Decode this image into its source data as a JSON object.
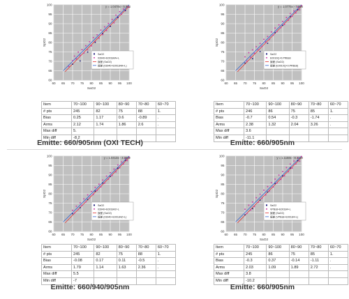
{
  "chart_data": [
    {
      "type": "scatter",
      "x_axis_label": "SaO2",
      "y_axis_label": "SpO2",
      "x_ticks": [
        "60",
        "65",
        "70",
        "75",
        "80",
        "85",
        "90",
        "95",
        "100"
      ],
      "y_ticks": [
        "60",
        "65",
        "70",
        "75",
        "80",
        "85",
        "90",
        "95",
        "100"
      ],
      "xlim": [
        60,
        100
      ],
      "ylim": [
        60,
        100
      ],
      "grid": true,
      "legend_placement": "right",
      "fit_equation": "y = 1.0478x - 5.904",
      "legend": [
        "SaO2",
        "03940+E00184A+L",
        "誤差 (SaO2)",
        "誤差 (03940+E00184A+L)"
      ],
      "series": [
        {
          "name": "SaO2",
          "values": [
            [
              70,
              68.5
            ],
            [
              74,
              70.2
            ],
            [
              78,
              74.9
            ],
            [
              82,
              80.1
            ],
            [
              86,
              84.8
            ],
            [
              90,
              88.6
            ],
            [
              94,
              93.4
            ],
            [
              98,
              97.1
            ]
          ]
        },
        {
          "name": "03940+E00184A+L",
          "values": [
            [
              68,
              67.3
            ],
            [
              70,
              70.4
            ],
            [
              71,
              72.8
            ],
            [
              72,
              71.3
            ],
            [
              73,
              74.9
            ],
            [
              74,
              73.1
            ],
            [
              75,
              76.2
            ],
            [
              76,
              74.4
            ],
            [
              77,
              78.3
            ],
            [
              78,
              76.1
            ],
            [
              79,
              80.4
            ],
            [
              80,
              78.2
            ],
            [
              81,
              82.6
            ],
            [
              82,
              80.4
            ],
            [
              83,
              84.1
            ],
            [
              84,
              82.3
            ],
            [
              85,
              86.6
            ],
            [
              86,
              84.2
            ],
            [
              87,
              88.3
            ],
            [
              88,
              86.4
            ],
            [
              89,
              90.1
            ],
            [
              90,
              88.6
            ],
            [
              91,
              92.3
            ],
            [
              92,
              90.4
            ],
            [
              93,
              94.6
            ],
            [
              94,
              93.2
            ],
            [
              95,
              96.4
            ],
            [
              96,
              95.1
            ],
            [
              97,
              97.8
            ],
            [
              98,
              96.9
            ],
            [
              99,
              99.2
            ],
            [
              100,
              98.7
            ]
          ]
        }
      ]
    },
    {
      "type": "scatter",
      "x_axis_label": "SaO2",
      "y_axis_label": "SpO2",
      "x_ticks": [
        "60",
        "65",
        "70",
        "75",
        "80",
        "85",
        "90",
        "95",
        "100"
      ],
      "y_ticks": [
        "60",
        "65",
        "70",
        "75",
        "80",
        "85",
        "90",
        "95",
        "100"
      ],
      "xlim": [
        60,
        100
      ],
      "ylim": [
        60,
        100
      ],
      "grid": true,
      "legend_placement": "right",
      "fit_equation": "y = 1.0775x - 7.998",
      "legend": [
        "SaO2",
        "E0010Q+0.PRBs8",
        "誤差 (SaO2)",
        "誤差 (E0010Q+0.PRBs8)"
      ],
      "series": [
        {
          "name": "SaO2",
          "values": [
            [
              70,
              69.1
            ],
            [
              74,
              71.4
            ],
            [
              78,
              75.2
            ],
            [
              82,
              79.6
            ],
            [
              86,
              85.2
            ],
            [
              90,
              89.1
            ],
            [
              94,
              93.8
            ],
            [
              98,
              97.4
            ]
          ]
        },
        {
          "name": "E0010Q+0.PRBs8",
          "values": [
            [
              70,
              72.4
            ],
            [
              71,
              70.1
            ],
            [
              72,
              74.6
            ],
            [
              73,
              72.2
            ],
            [
              74,
              76.1
            ],
            [
              75,
              74.3
            ],
            [
              76,
              77.8
            ],
            [
              77,
              76.1
            ],
            [
              78,
              79.6
            ],
            [
              79,
              77.9
            ],
            [
              80,
              81.7
            ],
            [
              81,
              80.3
            ],
            [
              82,
              83.2
            ],
            [
              83,
              81.6
            ],
            [
              84,
              85.6
            ],
            [
              85,
              83.9
            ],
            [
              86,
              87.7
            ],
            [
              87,
              85.8
            ],
            [
              88,
              89.4
            ],
            [
              89,
              87.9
            ],
            [
              90,
              91.2
            ],
            [
              91,
              89.6
            ],
            [
              92,
              93.3
            ],
            [
              93,
              91.8
            ],
            [
              94,
              95.4
            ],
            [
              95,
              93.9
            ],
            [
              96,
              96.8
            ],
            [
              97,
              95.7
            ],
            [
              98,
              98.9
            ],
            [
              99,
              97.4
            ],
            [
              100,
              99.6
            ]
          ]
        }
      ]
    },
    {
      "type": "scatter",
      "x_axis_label": "SaO2",
      "y_axis_label": "SpO2",
      "x_ticks": [
        "60",
        "65",
        "70",
        "75",
        "80",
        "85",
        "90",
        "95",
        "100"
      ],
      "y_ticks": [
        "60",
        "65",
        "70",
        "75",
        "80",
        "85",
        "90",
        "95",
        "100"
      ],
      "xlim": [
        60,
        100
      ],
      "ylim": [
        60,
        100
      ],
      "grid": true,
      "legend_placement": "right",
      "fit_equation": "y = 1.0413x - 4.0802",
      "legend": [
        "SaO2",
        "03940+E00184Z+L",
        "誤差 (SaO2)",
        "誤差 (03940+E00184Z+L)"
      ],
      "series": [
        {
          "name": "SaO2",
          "values": [
            [
              70,
              69.4
            ],
            [
              74,
              72.6
            ],
            [
              78,
              76.9
            ],
            [
              82,
              81.4
            ],
            [
              86,
              85.7
            ],
            [
              90,
              89.2
            ],
            [
              94,
              93.6
            ],
            [
              98,
              97.8
            ]
          ]
        },
        {
          "name": "03940+E00184Z+L",
          "values": [
            [
              70,
              71.2
            ],
            [
              71,
              69.8
            ],
            [
              72,
              73.4
            ],
            [
              73,
              71.6
            ],
            [
              74,
              75.2
            ],
            [
              75,
              73.8
            ],
            [
              76,
              77.3
            ],
            [
              77,
              75.6
            ],
            [
              78,
              79.4
            ],
            [
              79,
              77.7
            ],
            [
              80,
              81.2
            ],
            [
              81,
              79.6
            ],
            [
              82,
              83.4
            ],
            [
              83,
              81.8
            ],
            [
              84,
              85.1
            ],
            [
              85,
              83.7
            ],
            [
              86,
              87.3
            ],
            [
              87,
              85.6
            ],
            [
              88,
              89.4
            ],
            [
              89,
              87.8
            ],
            [
              90,
              91.2
            ],
            [
              91,
              89.7
            ],
            [
              92,
              93.1
            ],
            [
              93,
              91.6
            ],
            [
              94,
              95.3
            ],
            [
              95,
              93.8
            ],
            [
              96,
              96.9
            ],
            [
              97,
              95.8
            ],
            [
              98,
              98.8
            ],
            [
              99,
              97.6
            ],
            [
              100,
              99.4
            ]
          ]
        }
      ]
    },
    {
      "type": "scatter",
      "x_axis_label": "SaO2",
      "y_axis_label": "SpO2",
      "x_ticks": [
        "60",
        "65",
        "70",
        "75",
        "80",
        "85",
        "90",
        "95",
        "100"
      ],
      "y_ticks": [
        "60",
        "65",
        "70",
        "75",
        "80",
        "85",
        "90",
        "95",
        "100"
      ],
      "xlim": [
        60,
        100
      ],
      "ylim": [
        60,
        100
      ],
      "grid": true,
      "legend_placement": "right",
      "fit_equation": "y = 1.1158x - 8.1129",
      "legend": [
        "SaO2",
        "VPBs8+E00184+L",
        "誤差 (SaO2)",
        "誤差 (VPBs8+E00184+L)"
      ],
      "series": [
        {
          "name": "SaO2",
          "values": [
            [
              70,
              68.8
            ],
            [
              74,
              72.1
            ],
            [
              78,
              76.6
            ],
            [
              82,
              80.9
            ],
            [
              86,
              85.4
            ],
            [
              90,
              89.5
            ],
            [
              94,
              93.7
            ],
            [
              98,
              97.6
            ]
          ]
        },
        {
          "name": "VPBs8+E00184+L",
          "values": [
            [
              70,
              71.8
            ],
            [
              71,
              69.6
            ],
            [
              72,
              73.9
            ],
            [
              73,
              71.4
            ],
            [
              74,
              75.6
            ],
            [
              75,
              73.2
            ],
            [
              76,
              77.9
            ],
            [
              77,
              75.4
            ],
            [
              78,
              79.8
            ],
            [
              79,
              77.6
            ],
            [
              80,
              81.9
            ],
            [
              81,
              79.4
            ],
            [
              82,
              83.8
            ],
            [
              83,
              81.5
            ],
            [
              84,
              85.9
            ],
            [
              85,
              83.6
            ],
            [
              86,
              87.8
            ],
            [
              87,
              85.7
            ],
            [
              88,
              89.9
            ],
            [
              89,
              87.6
            ],
            [
              90,
              91.8
            ],
            [
              91,
              89.5
            ],
            [
              92,
              93.9
            ],
            [
              93,
              91.7
            ],
            [
              94,
              95.8
            ],
            [
              95,
              93.6
            ],
            [
              96,
              97.4
            ],
            [
              97,
              95.9
            ],
            [
              98,
              99.1
            ],
            [
              99,
              97.3
            ],
            [
              100,
              99.8
            ]
          ]
        }
      ]
    }
  ],
  "tables": [
    {
      "header": [
        "Item",
        "70~100",
        "90~100",
        "80~90",
        "70~80",
        "60~70"
      ],
      "rows": [
        [
          "# pts",
          "245",
          "82",
          "75",
          "88",
          "1."
        ],
        [
          "Bias",
          "0.25",
          "1.17",
          "0.6",
          "-0.89",
          "."
        ],
        [
          "Arms",
          "2.12",
          "1.74",
          "1.86",
          "2.6",
          "."
        ],
        [
          "Max diff",
          "5.",
          "",
          "",
          "",
          ""
        ],
        [
          "Min diff",
          "-8.2",
          "",
          "",
          "",
          ""
        ]
      ]
    },
    {
      "header": [
        "Item",
        "70~100",
        "90~100",
        "80~90",
        "70~80",
        "60~70"
      ],
      "rows": [
        [
          "# pts",
          "246",
          "86",
          "75",
          "85",
          "1."
        ],
        [
          "Bias",
          "-0.7",
          "0.54",
          "-0.3",
          "-1.74",
          "."
        ],
        [
          "Arms",
          "2.38",
          "1.32",
          "2.04",
          "3.26",
          "."
        ],
        [
          "Max diff",
          "3.6",
          "",
          "",
          "",
          ""
        ],
        [
          "Min diff",
          "-11.1",
          "",
          "",
          "",
          ""
        ]
      ]
    },
    {
      "header": [
        "Item",
        "70~100",
        "90~100",
        "80~90",
        "70~80",
        "60~70"
      ],
      "rows": [
        [
          "# pts",
          "245",
          "82",
          "75",
          "88",
          "1."
        ],
        [
          "Bias",
          "-0.08",
          "0.17",
          "0.11",
          "-0.5",
          "."
        ],
        [
          "Arms",
          "1.79",
          "1.14",
          "1.63",
          "2.36",
          "."
        ],
        [
          "Max diff",
          "5.5",
          "",
          "",
          "",
          ""
        ],
        [
          "Min diff",
          "-7",
          "",
          "",
          "",
          ""
        ]
      ]
    },
    {
      "header": [
        "Item",
        "70~100",
        "90~100",
        "80~90",
        "70~80",
        "60~70"
      ],
      "rows": [
        [
          "# pts",
          "245",
          "86",
          "75",
          "85",
          "1."
        ],
        [
          "Bias",
          "-0.3",
          "0.37",
          "-0.14",
          "-1.11",
          "."
        ],
        [
          "Arms",
          "2.03",
          "1.09",
          "1.89",
          "2.72",
          "."
        ],
        [
          "Max diff",
          "3.8",
          "",
          "",
          "",
          ""
        ],
        [
          "Min diff",
          "-10.2",
          "",
          "",
          "",
          ""
        ]
      ]
    }
  ],
  "captions": [
    "Emitte: 660/905nm (OXI TECH)",
    "Emitte: 660/905nm",
    "Emitte: 660/940/905nm",
    "Emitte: 660/905nm"
  ],
  "colors": {
    "plot_background": "#c0c0c0",
    "gridline": "#ffffff",
    "sao2_points": "#1a1a7a",
    "device_points": "#cc3ca6",
    "fit_line_red": "#e03030",
    "fit_line_blue": "#3060d0"
  }
}
